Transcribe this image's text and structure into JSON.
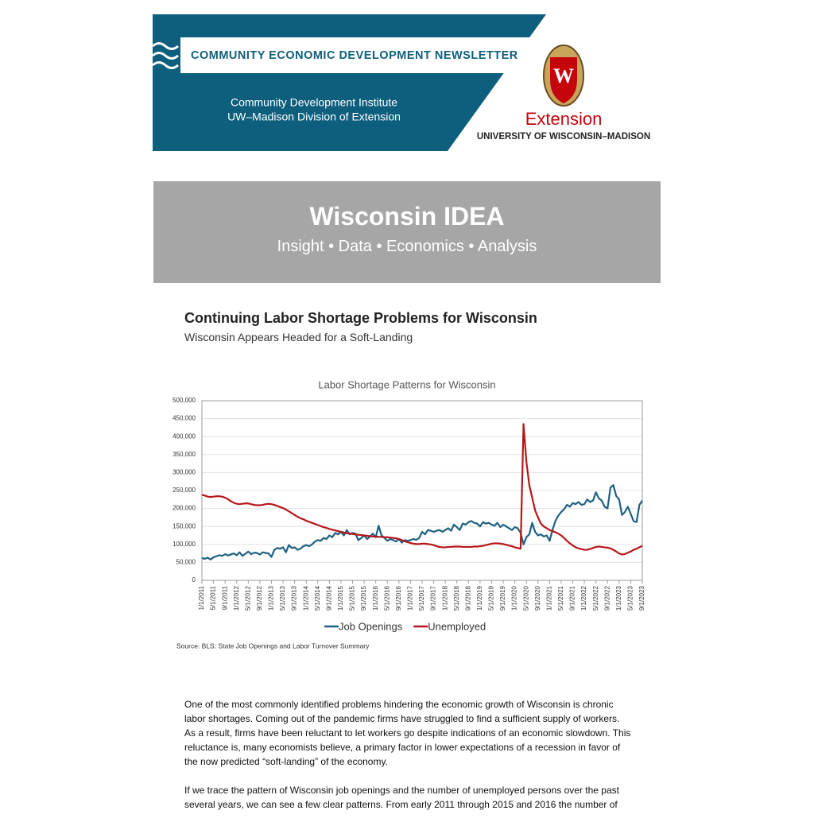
{
  "header": {
    "newsletter_title": "COMMUNITY ECONOMIC DEVELOPMENT NEWSLETTER",
    "institute": "Community Development Institute",
    "division": "UW–Madison Division of Extension",
    "crest_letter": "W",
    "extension": "Extension",
    "university": "UNIVERSITY OF WISCONSIN–MADISON"
  },
  "banner": {
    "title": "Wisconsin IDEA",
    "subtitle": "Insight • Data • Economics • Analysis"
  },
  "article": {
    "title": "Continuing Labor Shortage Problems for Wisconsin",
    "subtitle": "Wisconsin Appears Headed for a Soft-Landing",
    "paragraphs": [
      "One of the most commonly identified problems hindering the economic growth of Wisconsin is chronic labor shortages. Coming out of the pandemic firms have struggled to find a sufficient supply of workers. As a result, firms have been reluctant to let workers go despite indications of an economic slowdown. This reluctance is, many economists believe, a primary factor in lower expectations of a recession in favor of the now predicted “soft-landing” of the economy.",
      "If we trace the pattern of Wisconsin job openings and the number of unemployed persons over the past several years, we can see a few clear patterns. From early 2011 through 2015 and 2016 the number of"
    ]
  },
  "chart_data": {
    "type": "line",
    "title": "Labor Shortage Patterns for Wisconsin",
    "source": "Source: BLS: State Job Openings and Labor Turnover Summary",
    "categories": [
      "1/1/2011",
      null,
      null,
      null,
      "5/1/2011",
      null,
      null,
      null,
      "9/1/2011",
      null,
      null,
      null,
      "1/1/2012",
      null,
      null,
      null,
      "5/1/2012",
      null,
      null,
      null,
      "9/1/2012",
      null,
      null,
      null,
      "1/1/2013",
      null,
      null,
      null,
      "5/1/2013",
      null,
      null,
      null,
      "9/1/2013",
      null,
      null,
      null,
      "1/1/2014",
      null,
      null,
      null,
      "5/1/2014",
      null,
      null,
      null,
      "9/1/2014",
      null,
      null,
      null,
      "1/1/2015",
      null,
      null,
      null,
      "5/1/2015",
      null,
      null,
      null,
      "9/1/2015",
      null,
      null,
      null,
      "1/1/2016",
      null,
      null,
      null,
      "5/1/2016",
      null,
      null,
      null,
      "9/1/2016",
      null,
      null,
      null,
      "1/1/2017",
      null,
      null,
      null,
      "5/1/2017",
      null,
      null,
      null,
      "9/1/2017",
      null,
      null,
      null,
      "1/1/2018",
      null,
      null,
      null,
      "5/1/2018",
      null,
      null,
      null,
      "9/1/2018",
      null,
      null,
      null,
      "1/1/2019",
      null,
      null,
      null,
      "5/1/2019",
      null,
      null,
      null,
      "9/1/2019",
      null,
      null,
      null,
      "1/1/2020",
      null,
      null,
      null,
      "5/1/2020",
      null,
      null,
      null,
      "9/1/2020",
      null,
      null,
      null,
      "1/1/2021",
      null,
      null,
      null,
      "5/1/2021",
      null,
      null,
      null,
      "9/1/2021",
      null,
      null,
      null,
      "1/1/2022",
      null,
      null,
      null,
      "5/1/2022",
      null,
      null,
      null,
      "9/1/2022",
      null,
      null,
      null,
      "1/1/2023",
      null,
      null,
      null,
      "5/1/2023",
      null,
      null,
      null,
      "9/1/2023"
    ],
    "series": [
      {
        "name": "Job Openings",
        "color": "#1f6082",
        "values": [
          62000,
          60000,
          63000,
          58000,
          64000,
          67000,
          70000,
          68000,
          73000,
          69000,
          72000,
          75000,
          70000,
          78000,
          68000,
          74000,
          80000,
          73000,
          77000,
          76000,
          72000,
          78000,
          76000,
          75000,
          65000,
          85000,
          90000,
          88000,
          92000,
          78000,
          98000,
          90000,
          92000,
          85000,
          88000,
          95000,
          98000,
          95000,
          100000,
          108000,
          112000,
          110000,
          118000,
          115000,
          125000,
          120000,
          132000,
          128000,
          135000,
          125000,
          140000,
          128000,
          132000,
          130000,
          112000,
          118000,
          125000,
          115000,
          122000,
          130000,
          120000,
          152000,
          125000,
          118000,
          110000,
          115000,
          112000,
          108000,
          115000,
          105000,
          112000,
          110000,
          112000,
          115000,
          113000,
          118000,
          135000,
          128000,
          140000,
          138000,
          135000,
          138000,
          140000,
          135000,
          140000,
          145000,
          138000,
          155000,
          148000,
          140000,
          158000,
          155000,
          162000,
          165000,
          160000,
          158000,
          150000,
          162000,
          158000,
          160000,
          155000,
          152000,
          160000,
          148000,
          155000,
          150000,
          145000,
          140000,
          148000,
          145000,
          132000,
          100000,
          120000,
          128000,
          160000,
          135000,
          125000,
          128000,
          122000,
          125000,
          110000,
          140000,
          165000,
          180000,
          190000,
          198000,
          210000,
          205000,
          215000,
          212000,
          218000,
          210000,
          212000,
          225000,
          218000,
          222000,
          245000,
          228000,
          222000,
          205000,
          200000,
          258000,
          265000,
          235000,
          225000,
          182000,
          190000,
          205000,
          185000,
          165000,
          162000,
          210000,
          222000
        ]
      },
      {
        "name": "Unemployed",
        "color": "#b5161b",
        "values": [
          238000,
          236000,
          233000,
          232000,
          233000,
          234000,
          234000,
          233000,
          230000,
          226000,
          220000,
          216000,
          213000,
          212000,
          213000,
          214000,
          214000,
          212000,
          210000,
          209000,
          209000,
          210000,
          212000,
          213000,
          212000,
          210000,
          207000,
          204000,
          201000,
          197000,
          192000,
          187000,
          182000,
          177000,
          173000,
          170000,
          166000,
          163000,
          160000,
          157000,
          154000,
          151000,
          148000,
          146000,
          143000,
          141000,
          139000,
          137000,
          135000,
          133000,
          131000,
          130000,
          129000,
          128000,
          127000,
          126000,
          125000,
          124000,
          123000,
          122000,
          122000,
          121000,
          121000,
          120000,
          120000,
          119000,
          118000,
          117000,
          115000,
          112000,
          109000,
          106000,
          104000,
          102000,
          101000,
          101000,
          102000,
          102000,
          101000,
          100000,
          98000,
          95000,
          93000,
          92000,
          92000,
          93000,
          93000,
          94000,
          94000,
          94000,
          93000,
          93000,
          93000,
          93000,
          94000,
          94000,
          95000,
          96000,
          98000,
          100000,
          102000,
          103000,
          103000,
          102000,
          101000,
          99000,
          97000,
          95000,
          92000,
          90000,
          88000,
          435000,
          330000,
          265000,
          230000,
          195000,
          175000,
          158000,
          150000,
          145000,
          140000,
          137000,
          134000,
          130000,
          125000,
          118000,
          110000,
          103000,
          97000,
          92000,
          89000,
          87000,
          85000,
          85000,
          87000,
          90000,
          93000,
          94000,
          93000,
          92000,
          91000,
          89000,
          85000,
          80000,
          75000,
          72000,
          73000,
          77000,
          80000,
          85000,
          88000,
          92000,
          96000
        ]
      }
    ],
    "ylim": [
      0,
      500000
    ],
    "yticks": [
      0,
      {
        "value": 50000,
        "label": "50,000"
      },
      {
        "value": 100000,
        "label": "100,000"
      },
      {
        "value": 150000,
        "label": "150,000"
      },
      {
        "value": 200000,
        "label": "200,000"
      },
      {
        "value": 250000,
        "label": "250,000"
      },
      {
        "value": 300000,
        "label": "300,000"
      },
      {
        "value": 350000,
        "label": "350,000"
      },
      {
        "value": 400000,
        "label": "400,000"
      },
      {
        "value": 450000,
        "label": "450,000"
      },
      {
        "value": 500000,
        "label": "500,000"
      }
    ],
    "grid": true,
    "legend": "bottom"
  }
}
